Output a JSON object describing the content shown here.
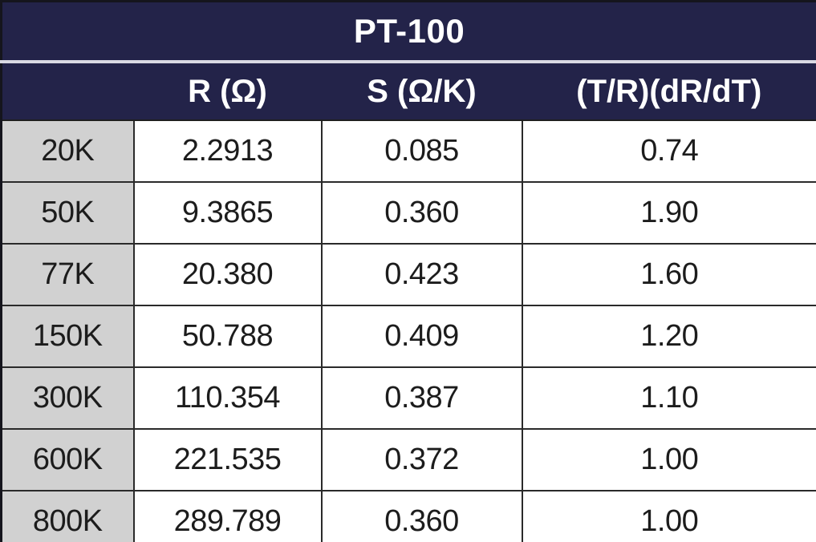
{
  "title": "PT-100",
  "colors": {
    "header_bg": "#232349",
    "header_text": "#ffffff",
    "row_label_bg": "#d1d1d1",
    "cell_bg": "#ffffff",
    "body_text": "#1c1c1c",
    "grid_border": "#2a2a2a",
    "outer_border": "#15151d",
    "title_separator": "#d9d9e3"
  },
  "chart_data": {
    "type": "table",
    "title": "PT-100",
    "columns": [
      "",
      "R (Ω)",
      "S (Ω/K)",
      "(T/R)(dR/dT)"
    ],
    "row_labels": [
      "20K",
      "50K",
      "77K",
      "150K",
      "300K",
      "600K",
      "800K"
    ],
    "rows": [
      [
        "20K",
        "2.2913",
        "0.085",
        "0.74"
      ],
      [
        "50K",
        "9.3865",
        "0.360",
        "1.90"
      ],
      [
        "77K",
        "20.380",
        "0.423",
        "1.60"
      ],
      [
        "150K",
        "50.788",
        "0.409",
        "1.20"
      ],
      [
        "300K",
        "110.354",
        "0.387",
        "1.10"
      ],
      [
        "600K",
        "221.535",
        "0.372",
        "1.00"
      ],
      [
        "800K",
        "289.789",
        "0.360",
        "1.00"
      ]
    ],
    "layout": {
      "grid": true,
      "row_label_column_shaded": true,
      "title_row_merged": true
    }
  }
}
